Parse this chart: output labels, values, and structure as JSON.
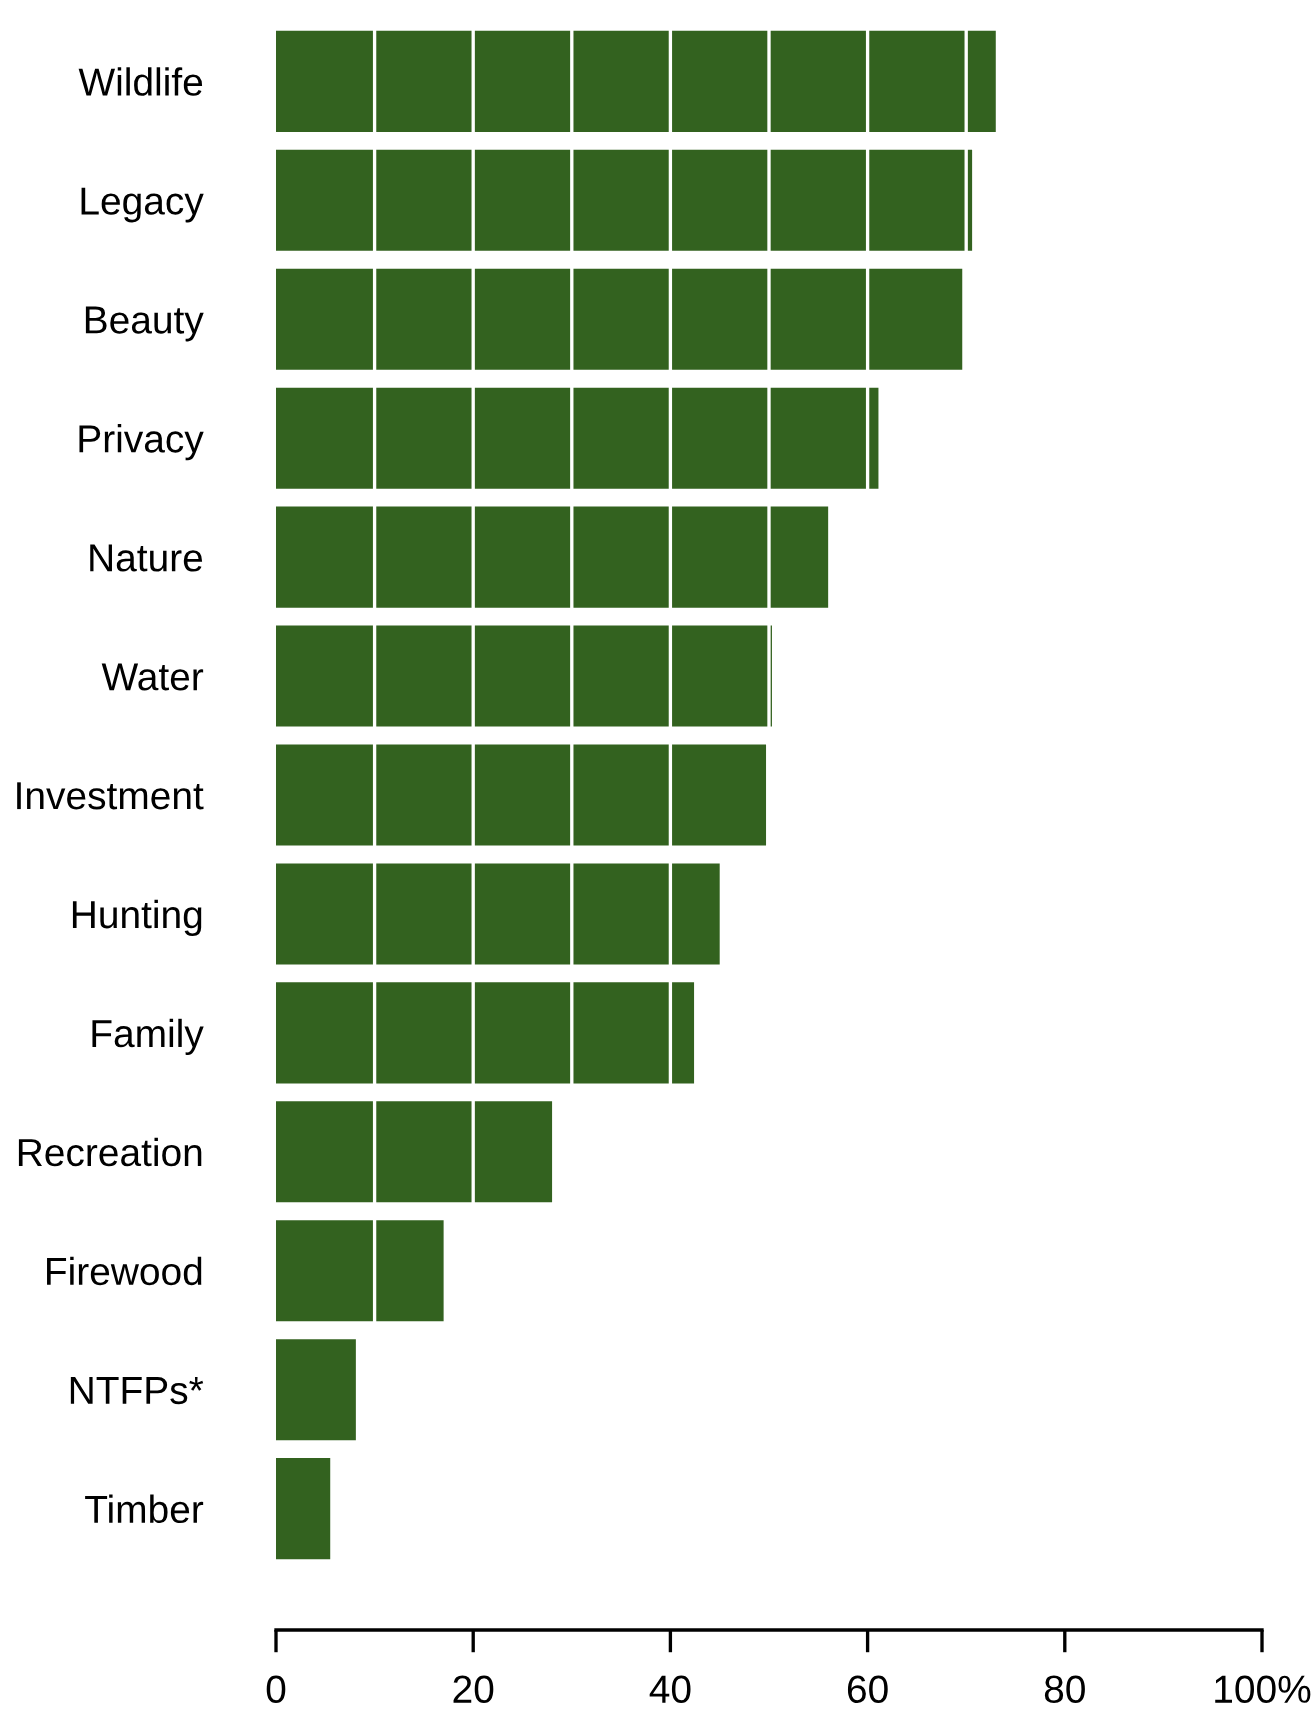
{
  "chart_data": {
    "type": "bar",
    "orientation": "horizontal",
    "categories": [
      "Wildlife",
      "Legacy",
      "Beauty",
      "Privacy",
      "Nature",
      "Water",
      "Investment",
      "Hunting",
      "Family",
      "Recreation",
      "Firewood",
      "NTFPs*",
      "Timber"
    ],
    "values": [
      73.0,
      70.6,
      69.6,
      61.1,
      56.0,
      50.3,
      49.7,
      45.0,
      42.4,
      28.0,
      17.0,
      8.1,
      5.5
    ],
    "color": "#33621f",
    "xlim": [
      0,
      100
    ],
    "xticks": [
      0,
      20,
      40,
      60,
      80,
      {
        "value": 100,
        "label": "100%"
      }
    ],
    "ref_lines": [
      {
        "axis": "x",
        "value": 10,
        "color": "#ffffff"
      },
      {
        "axis": "x",
        "value": 20,
        "color": "#ffffff"
      },
      {
        "axis": "x",
        "value": 30,
        "color": "#ffffff"
      },
      {
        "axis": "x",
        "value": 40,
        "color": "#ffffff"
      },
      {
        "axis": "x",
        "value": 50,
        "color": "#ffffff"
      },
      {
        "axis": "x",
        "value": 60,
        "color": "#ffffff"
      },
      {
        "axis": "x",
        "value": 70,
        "color": "#ffffff"
      }
    ]
  }
}
